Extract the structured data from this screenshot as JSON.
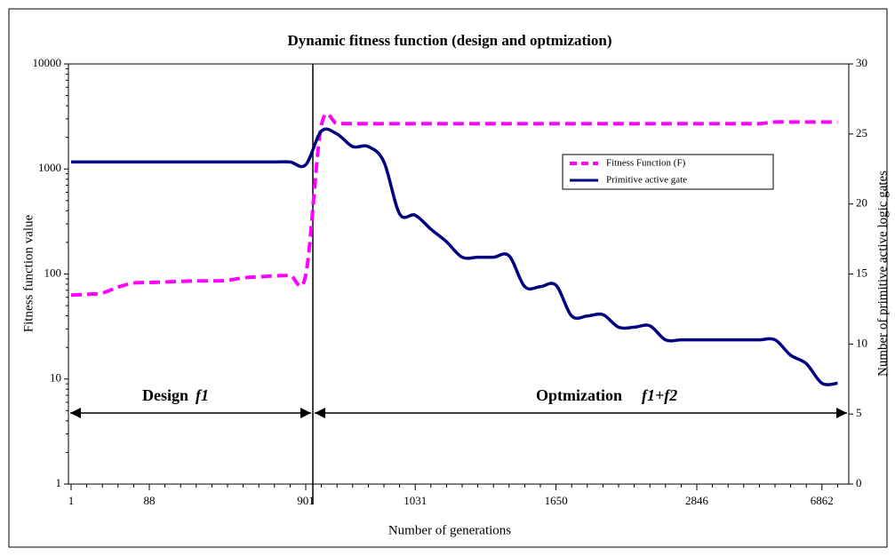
{
  "chart_data": {
    "type": "line",
    "title": "Dynamic fitness function (design and optmization)",
    "x_label": "Number of generations",
    "y_label": "Fitness function value",
    "y2_label": "Number of primitive active logic gates",
    "annotations": [
      "Design",
      "f1",
      "Optmization",
      "f1+f2"
    ],
    "categories": [
      "1",
      null,
      null,
      null,
      null,
      "88",
      null,
      null,
      null,
      null,
      null,
      null,
      null,
      null,
      null,
      "901",
      null,
      null,
      null,
      null,
      null,
      null,
      "1031",
      null,
      null,
      null,
      null,
      null,
      null,
      null,
      null,
      "1650",
      null,
      null,
      null,
      null,
      null,
      null,
      null,
      null,
      "2846",
      null,
      null,
      null,
      null,
      null,
      null,
      null,
      "6862",
      null
    ],
    "yscale": "log",
    "ylim": [
      1,
      10000
    ],
    "yticks": [
      1,
      10,
      100,
      1000,
      10000
    ],
    "y2lim": [
      0,
      30
    ],
    "y2ticks": [
      0,
      5,
      10,
      15,
      20,
      25,
      30
    ],
    "grid": false,
    "legend": "right",
    "series": [
      {
        "name": "Fitness Function  (F)",
        "color": "#ff00ff",
        "dash": true,
        "values": [
          63,
          64,
          66,
          75,
          82,
          83,
          84,
          85,
          86,
          86,
          87,
          92,
          94,
          96,
          97,
          98,
          2600,
          2700,
          2700,
          2700,
          2700,
          2700,
          2700,
          2700,
          2700,
          2700,
          2700,
          2700,
          2700,
          2700,
          2700,
          2700,
          2700,
          2700,
          2700,
          2700,
          2700,
          2700,
          2700,
          2700,
          2700,
          2700,
          2700,
          2700,
          2700,
          2800,
          2800,
          2800,
          2800,
          2800
        ]
      },
      {
        "name": "Primitive active gate",
        "color": "#000080",
        "axis": "y2",
        "values": [
          23,
          23,
          23,
          23,
          23,
          23,
          23,
          23,
          23,
          23,
          23,
          23,
          23,
          23,
          23,
          22.8,
          25.2,
          25,
          24.1,
          24.1,
          23,
          19.3,
          19.2,
          18.2,
          17.3,
          16.2,
          16.2,
          16.2,
          16.3,
          14.1,
          14.1,
          14.2,
          12,
          12,
          12.1,
          11.2,
          11.2,
          11.3,
          10.3,
          10.3,
          10.3,
          10.3,
          10.3,
          10.3,
          10.3,
          10.3,
          9.2,
          8.6,
          7.2,
          7.2
        ]
      }
    ]
  }
}
